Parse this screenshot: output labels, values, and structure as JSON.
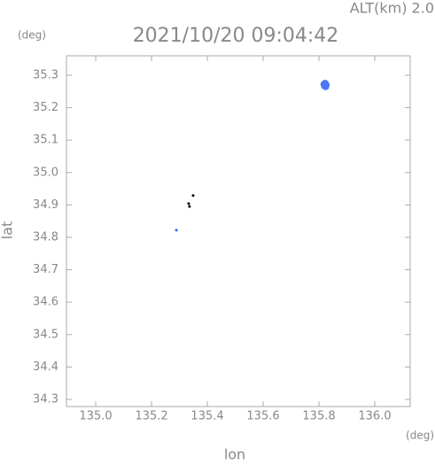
{
  "chart_data": {
    "type": "scatter",
    "title": "2021/10/20 09:04:42",
    "annotation": "ALT(km) 2.0",
    "y_unit": "(deg)",
    "x_unit": "(deg)",
    "xlabel": "lon",
    "ylabel": "lat",
    "xlim": [
      134.895,
      136.127
    ],
    "ylim": [
      34.278,
      35.36
    ],
    "xticks": [
      {
        "value": 135.0,
        "label": "135.0"
      },
      135.2,
      135.4,
      135.6,
      135.8,
      {
        "value": 136.0,
        "label": "136.0"
      }
    ],
    "yticks": [
      34.3,
      34.4,
      34.5,
      34.6,
      34.7,
      34.8,
      34.9,
      {
        "value": 35.0,
        "label": "35.0"
      },
      35.1,
      35.2,
      35.3
    ],
    "series": [
      {
        "color": "#4a78f0",
        "x": [
          135.818,
          135.822,
          135.826,
          135.82,
          135.824
        ],
        "values": [
          35.272,
          35.275,
          35.27,
          35.267,
          35.265
        ]
      },
      {
        "color": "#3a5ff0",
        "x": [
          135.289
        ],
        "values": [
          34.822
        ]
      },
      {
        "color": "#000000",
        "x": [
          135.333,
          135.349,
          135.336
        ],
        "values": [
          34.904,
          34.929,
          34.895
        ]
      }
    ]
  }
}
